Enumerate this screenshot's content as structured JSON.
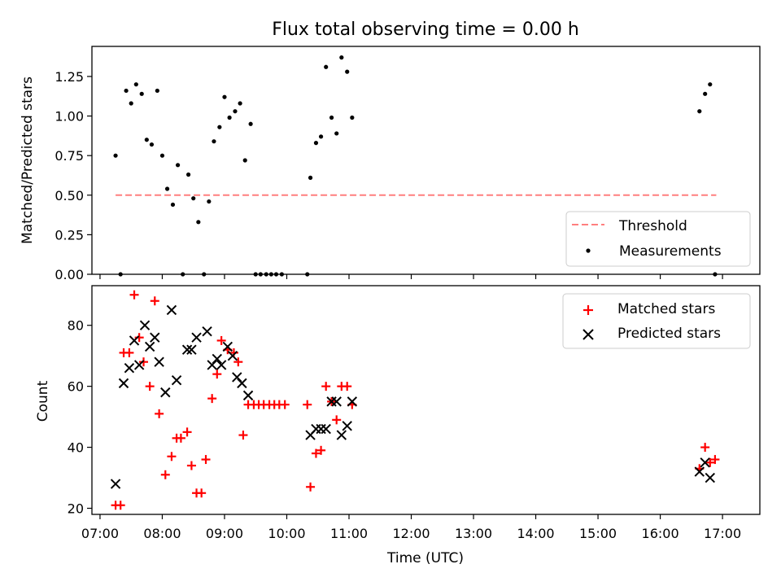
{
  "colors": {
    "threshold": "#ff7f7f",
    "measurements": "#000000",
    "matched": "#ff0000",
    "predicted": "#000000"
  },
  "chart_data": [
    {
      "type": "scatter",
      "title": "Flux total observing time = 0.00 h",
      "xlabel": "",
      "ylabel": "Matched/Predicted stars",
      "xlim": [
        6.87,
        17.6
      ],
      "ylim": [
        0,
        1.44
      ],
      "yticks": [
        0.0,
        0.25,
        0.5,
        0.75,
        1.0,
        1.25
      ],
      "ytick_labels": [
        "0.00",
        "0.25",
        "0.50",
        "0.75",
        "1.00",
        "1.25"
      ],
      "legend_position": "lower-right",
      "series": [
        {
          "name": "Threshold",
          "kind": "dashed-line",
          "x": [
            7.25,
            16.9
          ],
          "y": [
            0.5,
            0.5
          ]
        },
        {
          "name": "Measurements",
          "kind": "dots",
          "x": [
            7.25,
            7.33,
            7.42,
            7.5,
            7.58,
            7.67,
            7.75,
            7.83,
            7.92,
            8.0,
            8.08,
            8.17,
            8.25,
            8.33,
            8.42,
            8.5,
            8.58,
            8.67,
            8.75,
            8.83,
            8.92,
            9.0,
            9.08,
            9.17,
            9.25,
            9.33,
            9.42,
            9.5,
            9.58,
            9.67,
            9.75,
            9.83,
            9.92,
            10.33,
            10.38,
            10.47,
            10.55,
            10.63,
            10.72,
            10.8,
            10.88,
            10.97,
            11.05,
            16.63,
            16.72,
            16.8,
            16.88
          ],
          "y": [
            0.75,
            0.0,
            1.16,
            1.08,
            1.2,
            1.14,
            0.85,
            0.82,
            1.16,
            0.75,
            0.54,
            0.44,
            0.69,
            0.0,
            0.63,
            0.48,
            0.33,
            0.0,
            0.46,
            0.84,
            0.93,
            1.12,
            0.99,
            1.03,
            1.08,
            0.72,
            0.95,
            0.0,
            0.0,
            0.0,
            0.0,
            0.0,
            0.0,
            0.0,
            0.61,
            0.83,
            0.87,
            1.31,
            0.99,
            0.89,
            1.37,
            1.28,
            0.99,
            1.03,
            1.14,
            1.2,
            0.0
          ]
        }
      ]
    },
    {
      "type": "scatter",
      "title": "",
      "xlabel": "Time (UTC)",
      "ylabel": "Count",
      "xlim": [
        6.87,
        17.6
      ],
      "ylim": [
        18,
        93
      ],
      "yticks": [
        20,
        40,
        60,
        80
      ],
      "xticks": [
        7,
        8,
        9,
        10,
        11,
        12,
        13,
        14,
        15,
        16,
        17
      ],
      "xtick_labels": [
        "07:00",
        "08:00",
        "09:00",
        "10:00",
        "11:00",
        "12:00",
        "13:00",
        "14:00",
        "15:00",
        "16:00",
        "17:00"
      ],
      "legend_position": "upper-right",
      "series": [
        {
          "name": "Matched stars",
          "kind": "plus",
          "x": [
            7.25,
            7.33,
            7.38,
            7.47,
            7.55,
            7.63,
            7.7,
            7.8,
            7.88,
            7.95,
            8.05,
            8.15,
            8.23,
            8.3,
            8.4,
            8.47,
            8.55,
            8.63,
            8.7,
            8.8,
            8.88,
            8.95,
            9.05,
            9.15,
            9.22,
            9.3,
            9.38,
            9.47,
            9.55,
            9.63,
            9.72,
            9.8,
            9.88,
            9.97,
            10.33,
            10.38,
            10.47,
            10.55,
            10.63,
            10.72,
            10.8,
            10.88,
            10.97,
            11.05,
            16.63,
            16.72,
            16.8,
            16.88
          ],
          "y": [
            21,
            21,
            71,
            71,
            90,
            76,
            68,
            60,
            88,
            51,
            31,
            37,
            43,
            43,
            45,
            34,
            25,
            25,
            36,
            56,
            64,
            75,
            72,
            71,
            68,
            44,
            54,
            54,
            54,
            54,
            54,
            54,
            54,
            54,
            54,
            27,
            38,
            39,
            60,
            55,
            49,
            60,
            60,
            54,
            33,
            40,
            35,
            36
          ]
        },
        {
          "name": "Predicted stars",
          "kind": "x",
          "x": [
            7.25,
            7.38,
            7.47,
            7.55,
            7.63,
            7.72,
            7.8,
            7.88,
            7.95,
            8.05,
            8.15,
            8.23,
            8.4,
            8.47,
            8.55,
            8.72,
            8.8,
            8.88,
            8.95,
            9.05,
            9.13,
            9.2,
            9.28,
            9.38,
            10.38,
            10.47,
            10.55,
            10.63,
            10.72,
            10.8,
            10.88,
            10.97,
            11.05,
            16.63,
            16.72,
            16.8
          ],
          "y": [
            28,
            61,
            66,
            75,
            67,
            80,
            73,
            76,
            68,
            58,
            85,
            62,
            72,
            72,
            76,
            78,
            67,
            69,
            67,
            73,
            70,
            63,
            61,
            57,
            44,
            46,
            46,
            46,
            55,
            55,
            44,
            47,
            55,
            32,
            35,
            30
          ]
        }
      ]
    }
  ]
}
